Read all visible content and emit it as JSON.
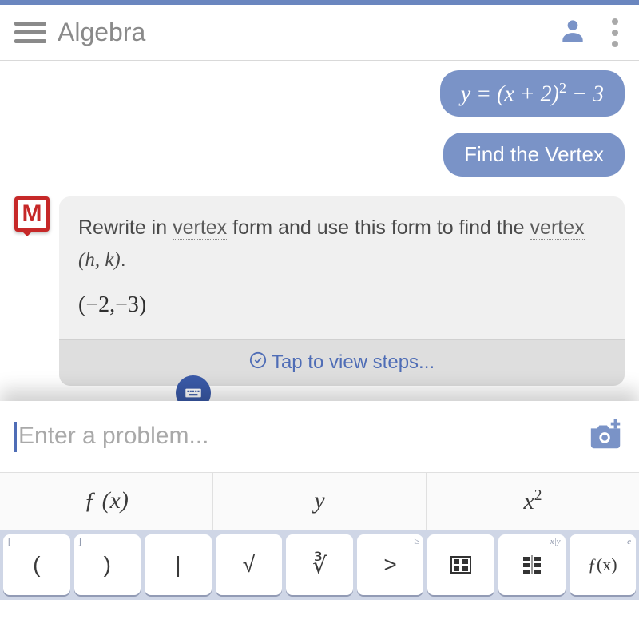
{
  "colors": {
    "accent": "#7a93c7",
    "topbar": "#6a86bf",
    "link": "#4f6db6",
    "botAvatar": "#c62828",
    "keyboard_bg": "#cfd6e6",
    "muted_text": "#8a8a8a"
  },
  "header": {
    "title": "Algebra"
  },
  "chat": {
    "user": {
      "equation_html": "y = (x + 2)<span class='sup'>2</span> − 3",
      "action": "Find the Vertex"
    },
    "bot": {
      "avatar_letter": "M",
      "text_pre": "Rewrite in ",
      "text_link1": "vertex",
      "text_mid": " form and use this form to find the ",
      "text_link2": "vertex",
      "math_hk": " (h, k)",
      "period": ".",
      "answer": "(−2,−3)",
      "steps_label": "Tap to view steps..."
    }
  },
  "input": {
    "placeholder": "Enter a problem..."
  },
  "tabs": [
    {
      "label": "ƒ (x)"
    },
    {
      "label": "y"
    },
    {
      "label_html": "x<span class='sup'>2</span>"
    }
  ],
  "keys": [
    {
      "main": "(",
      "cornerL": "["
    },
    {
      "main": ")",
      "cornerL": "]"
    },
    {
      "main": "|"
    },
    {
      "main": "√"
    },
    {
      "main": "∛",
      "corner": ""
    },
    {
      "main": ">",
      "corner": "≥"
    },
    {
      "main": "⊞",
      "corner": ""
    },
    {
      "main": "▦",
      "corner": "x|y"
    },
    {
      "main": "ƒ(x)",
      "corner": "e",
      "italic": true
    }
  ]
}
